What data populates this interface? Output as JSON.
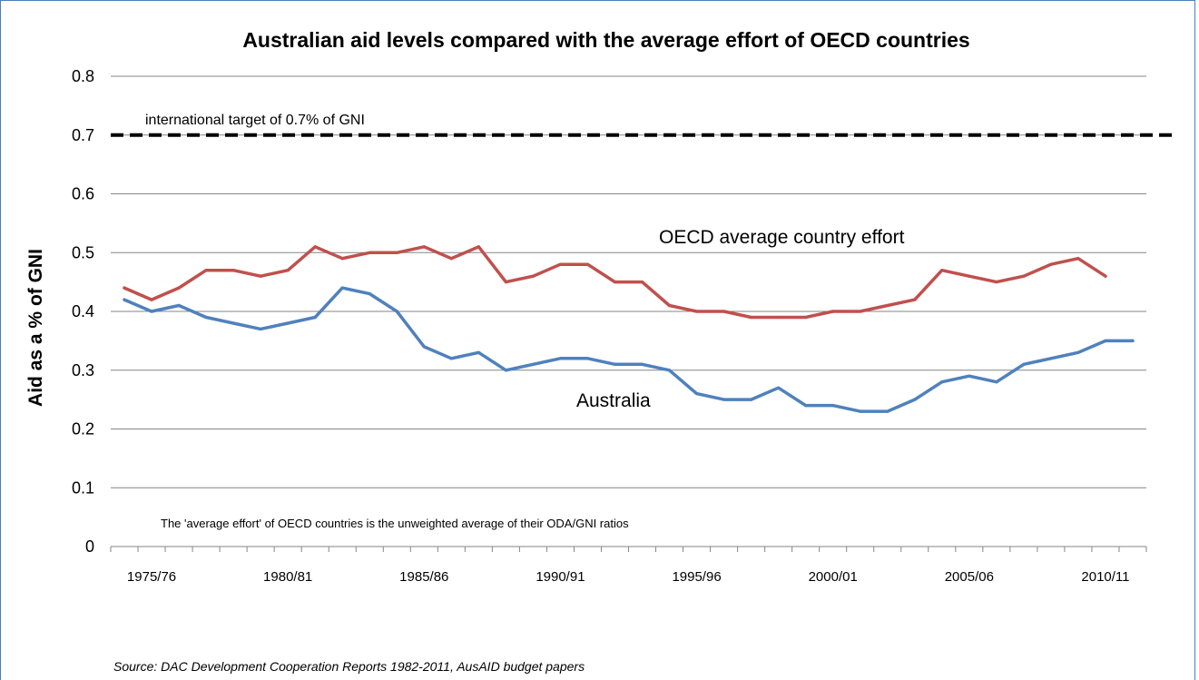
{
  "chart_data": {
    "type": "line",
    "title": "Australian aid levels compared with the average effort of OECD countries",
    "xlabel": "",
    "ylabel": "Aid as a % of GNI",
    "ylim": [
      0,
      0.8
    ],
    "yticks": [
      "0",
      "0.1",
      "0.2",
      "0.3",
      "0.4",
      "0.5",
      "0.6",
      "0.7",
      "0.8"
    ],
    "x_tick_labels": [
      "1975/76",
      "1980/81",
      "1985/86",
      "1990/91",
      "1995/96",
      "2000/01",
      "2005/06",
      "2010/11"
    ],
    "categories": [
      "1974/75",
      "1975/76",
      "1976/77",
      "1977/78",
      "1978/79",
      "1979/80",
      "1980/81",
      "1981/82",
      "1982/83",
      "1983/84",
      "1984/85",
      "1985/86",
      "1986/87",
      "1987/88",
      "1988/89",
      "1989/90",
      "1990/91",
      "1991/92",
      "1992/93",
      "1993/94",
      "1994/95",
      "1995/96",
      "1996/97",
      "1997/98",
      "1998/99",
      "1999/00",
      "2000/01",
      "2001/02",
      "2002/03",
      "2003/04",
      "2004/05",
      "2005/06",
      "2006/07",
      "2007/08",
      "2008/09",
      "2009/10",
      "2010/11",
      "2011/12"
    ],
    "grid": true,
    "series": [
      {
        "name": "OECD average country effort",
        "color": "#c0504d",
        "values": [
          0.44,
          0.42,
          0.44,
          0.47,
          0.47,
          0.46,
          0.47,
          0.51,
          0.49,
          0.5,
          0.5,
          0.51,
          0.49,
          0.51,
          0.45,
          0.46,
          0.48,
          0.48,
          0.45,
          0.45,
          0.41,
          0.4,
          0.4,
          0.39,
          0.39,
          0.39,
          0.4,
          0.4,
          0.41,
          0.42,
          0.47,
          0.46,
          0.45,
          0.46,
          0.48,
          0.49,
          0.46,
          null
        ]
      },
      {
        "name": "Australia",
        "color": "#4f81bd",
        "values": [
          0.42,
          0.4,
          0.41,
          0.39,
          0.38,
          0.37,
          0.38,
          0.39,
          0.44,
          0.43,
          0.4,
          0.34,
          0.32,
          0.33,
          0.3,
          0.31,
          0.32,
          0.32,
          0.31,
          0.31,
          0.3,
          0.26,
          0.25,
          0.25,
          0.27,
          0.24,
          0.24,
          0.23,
          0.23,
          0.25,
          0.28,
          0.29,
          0.28,
          0.31,
          0.32,
          0.33,
          0.35,
          0.35
        ]
      }
    ],
    "target_line": {
      "value": 0.7,
      "label": "international target of 0.7% of GNI",
      "color": "#000000"
    },
    "annotations": {
      "note": "The 'average effort' of OECD countries is the unweighted average of their ODA/GNI ratios"
    }
  },
  "source": "Source: DAC Development Cooperation Reports 1982-2011, AusAID budget papers"
}
